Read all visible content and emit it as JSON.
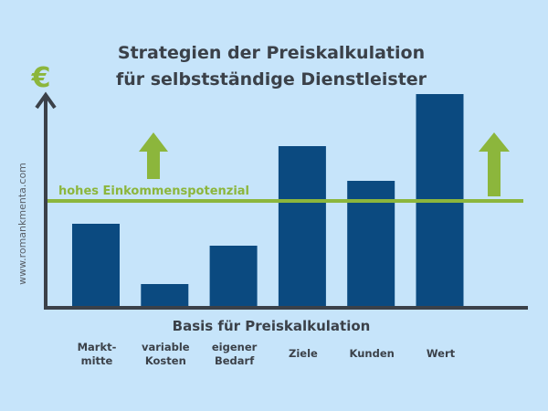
{
  "chart_data": {
    "type": "bar",
    "title": "Strategien der Preiskalkulation",
    "subtitle": "für selbstständige Dienstleister",
    "xlabel": "Basis für Preiskalkulation",
    "ylabel": "€",
    "categories": [
      [
        "Markt-",
        "mitte"
      ],
      [
        "variable",
        "Kosten"
      ],
      [
        "eigener",
        "Bedarf"
      ],
      [
        "Ziele"
      ],
      [
        "Kunden"
      ],
      [
        "Wert"
      ]
    ],
    "values": [
      90,
      24,
      66,
      175,
      137,
      232
    ],
    "ylim": [
      0,
      240
    ],
    "y_ticks_shown": false,
    "grid": false,
    "reference_line": {
      "label": "hohes Einkommenspotenzial",
      "value": 115
    },
    "annotations": [
      "up-arrow-left",
      "up-arrow-right"
    ],
    "watermark": "www.romankmenta.com",
    "colors": {
      "bar": "#0b4a80",
      "accent": "#8cb63c",
      "axis": "#3b4149",
      "background": "#c6e4fa"
    }
  }
}
